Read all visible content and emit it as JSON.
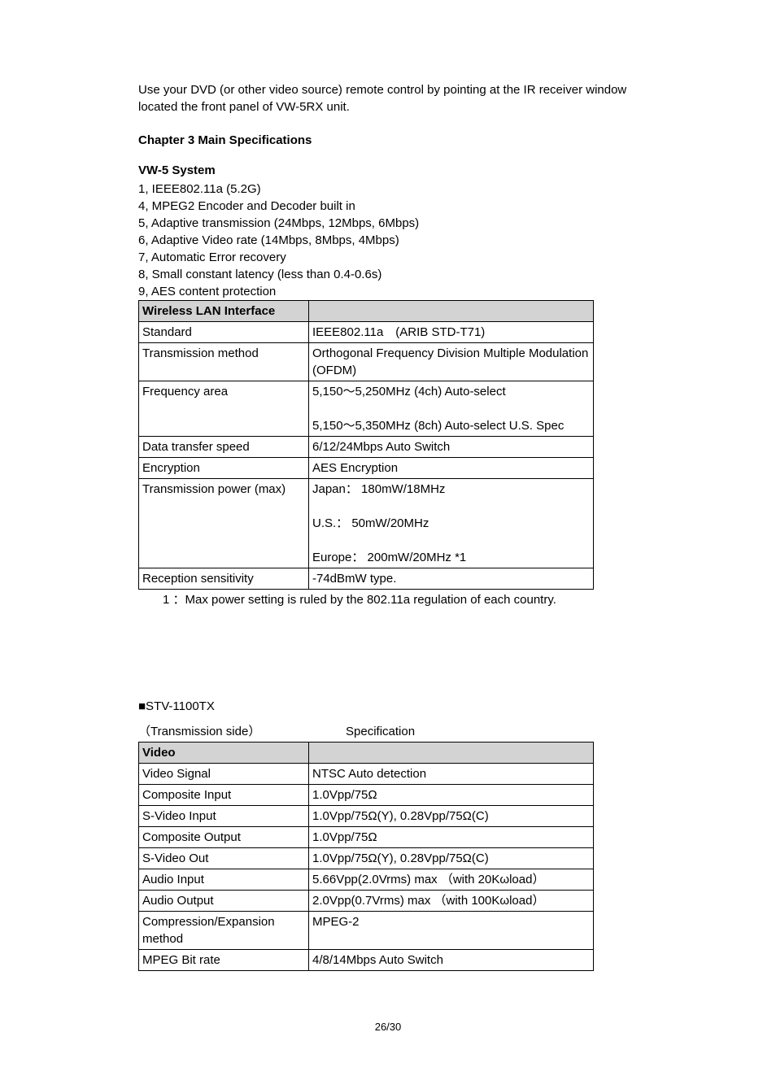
{
  "intro": "Use your DVD (or other video source) remote control by pointing at the IR receiver window located the front panel of VW-5RX unit.",
  "chapter": "Chapter 3  Main Specifications",
  "vw5": {
    "heading": "VW-5 System",
    "items": [
      "1, IEEE802.11a (5.2G)",
      "4, MPEG2 Encoder and Decoder built in",
      "5, Adaptive transmission (24Mbps, 12Mbps, 6Mbps)",
      "6, Adaptive Video rate (14Mbps, 8Mbps, 4Mbps)",
      "7, Automatic Error recovery",
      "8, Small constant latency (less than 0.4-0.6s)",
      "9, AES content protection"
    ]
  },
  "lan": {
    "header": "Wireless LAN Interface",
    "rows": [
      {
        "label": "Standard",
        "value": "IEEE802.11a　(ARIB STD-T71)"
      },
      {
        "label": "Transmission method",
        "value": "Orthogonal Frequency Division Multiple Modulation (OFDM)"
      },
      {
        "label": "Frequency area",
        "value": "5,150～5,250MHz (4ch) Auto-select\n\n5,150～5,350MHz (8ch) Auto-select    U.S. Spec"
      },
      {
        "label": "Data transfer speed",
        "value": "6/12/24Mbps    Auto Switch"
      },
      {
        "label": "Encryption",
        "value": "AES Encryption"
      },
      {
        "label": "Transmission power (max)",
        "value": "Japan： 180mW/18MHz\n\nU.S.：   50mW/20MHz\n\nEurope： 200mW/20MHz *1"
      },
      {
        "label": "Reception sensitivity",
        "value": "-74dBmW type."
      }
    ]
  },
  "footnote": "1  ：Max power setting is ruled by the 802.11a regulation of each country.",
  "tx": {
    "heading": "■STV-1100TX",
    "sub1": "（Transmission side）",
    "sub2": "Specification",
    "header": "Video",
    "rows": [
      {
        "label": "Video Signal",
        "value": "NTSC  Auto detection"
      },
      {
        "label": "Composite Input",
        "value": "1.0Vpp/75Ω"
      },
      {
        "label": "S-Video Input",
        "value": "1.0Vpp/75Ω(Y), 0.28Vpp/75Ω(C)"
      },
      {
        "label": "Composite Output",
        "value": "1.0Vpp/75Ω"
      },
      {
        "label": "S-Video Out",
        "value": "1.0Vpp/75Ω(Y), 0.28Vpp/75Ω(C)"
      },
      {
        "label": "Audio Input",
        "value": "5.66Vpp(2.0Vrms) max （with 20Kωload）"
      },
      {
        "label": "Audio Output",
        "value": "2.0Vpp(0.7Vrms) max （with 100Kωload）"
      },
      {
        "label": "Compression/Expansion method",
        "value": "MPEG-2"
      },
      {
        "label": "MPEG Bit rate",
        "value": "4/8/14Mbps    Auto Switch"
      }
    ]
  },
  "pagenum": "26/30"
}
